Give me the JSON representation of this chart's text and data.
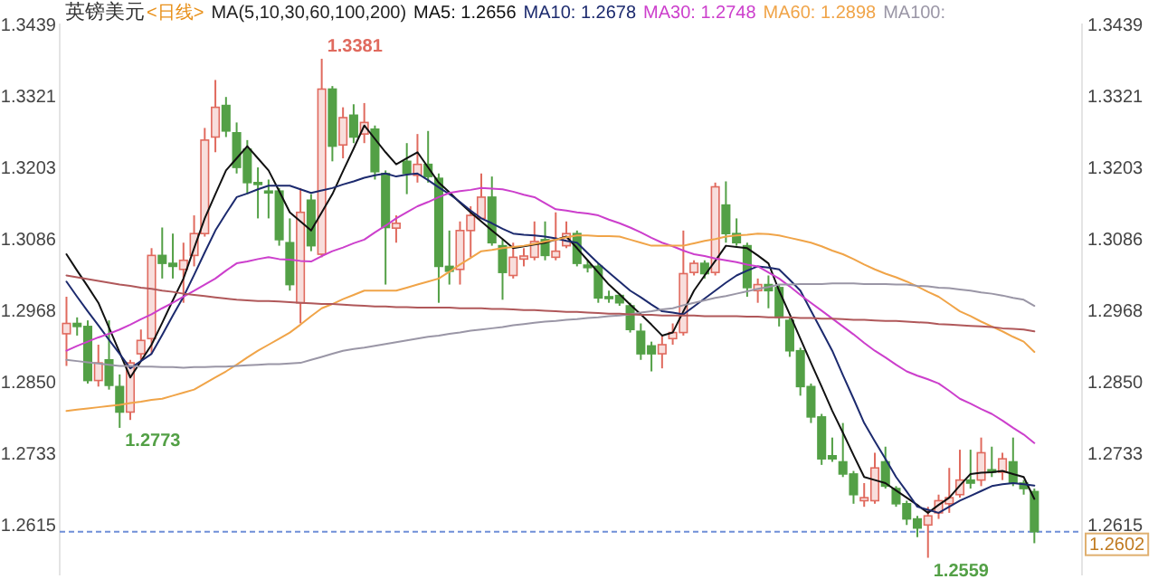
{
  "chart_data": {
    "type": "candlestick",
    "title": "英镑美元",
    "subtitle": "<日线>",
    "categories": [
      null,
      null,
      null,
      null,
      null,
      null,
      null,
      null,
      null,
      null,
      null,
      null,
      null,
      null,
      null,
      null,
      null,
      null,
      null,
      null,
      null,
      null,
      null,
      null,
      null,
      null,
      null,
      null,
      null,
      null,
      null,
      null,
      null,
      null,
      null,
      null,
      null,
      null,
      null,
      null,
      null,
      null,
      null,
      null,
      null,
      null,
      null,
      null,
      null,
      null,
      null,
      null,
      null,
      null,
      null,
      null,
      null,
      null,
      null,
      null,
      null,
      null,
      null,
      null,
      null,
      null,
      null,
      null,
      null,
      null,
      null,
      null,
      null,
      null,
      null,
      null,
      null,
      null,
      null,
      null,
      null,
      null,
      null,
      null,
      null,
      null,
      null,
      null,
      null,
      null,
      null,
      null
    ],
    "ohlc": [
      [
        1.2928,
        1.2989,
        1.2875,
        1.2945
      ],
      [
        1.2945,
        1.2955,
        1.2925,
        1.294
      ],
      [
        1.294,
        1.295,
        1.2846,
        1.2851
      ],
      [
        1.2851,
        1.291,
        1.2841,
        1.288
      ],
      [
        1.2885,
        1.295,
        1.2836,
        1.2843
      ],
      [
        1.2841,
        1.2861,
        1.2773,
        1.2799
      ],
      [
        1.2799,
        1.2885,
        1.2786,
        1.288
      ],
      [
        1.2895,
        1.2935,
        1.2885,
        1.2917
      ],
      [
        1.292,
        1.3069,
        1.2895,
        1.3057
      ],
      [
        1.3057,
        1.3103,
        1.3019,
        1.3044
      ],
      [
        1.3044,
        1.3093,
        1.3019,
        1.3039
      ],
      [
        1.3034,
        1.3078,
        1.2979,
        1.3049
      ],
      [
        1.3057,
        1.3123,
        1.3039,
        1.3093
      ],
      [
        1.3093,
        1.3267,
        1.3088,
        1.3247
      ],
      [
        1.3252,
        1.3346,
        1.3227,
        1.3301
      ],
      [
        1.3304,
        1.3318,
        1.3252,
        1.3262
      ],
      [
        1.3259,
        1.3276,
        1.3192,
        1.3202
      ],
      [
        1.3232,
        1.3247,
        1.3158,
        1.3177
      ],
      [
        1.3177,
        1.3202,
        1.3118,
        1.3174
      ],
      [
        1.3163,
        1.3182,
        1.3118,
        1.316
      ],
      [
        1.3163,
        1.3168,
        1.3073,
        1.3083
      ],
      [
        1.3078,
        1.3118,
        1.2999,
        1.3009
      ],
      [
        1.2979,
        1.3168,
        1.2945,
        1.3128
      ],
      [
        1.3148,
        1.3158,
        1.3064,
        1.3073
      ],
      [
        1.3059,
        1.3381,
        1.3054,
        1.3331
      ],
      [
        1.3331,
        1.3336,
        1.3212,
        1.3237
      ],
      [
        1.3239,
        1.3301,
        1.3217,
        1.3284
      ],
      [
        1.3288,
        1.3306,
        1.3242,
        1.3252
      ],
      [
        1.3257,
        1.3308,
        1.3242,
        1.3276
      ],
      [
        1.3265,
        1.3271,
        1.3182,
        1.3195
      ],
      [
        1.3192,
        1.3197,
        1.3009,
        1.3103
      ],
      [
        1.3102,
        1.3123,
        1.3078,
        1.311
      ],
      [
        1.3212,
        1.3242,
        1.3158,
        1.3192
      ],
      [
        1.3189,
        1.3257,
        1.3177,
        1.3207
      ],
      [
        1.3207,
        1.3262,
        1.3177,
        1.3187
      ],
      [
        1.3184,
        1.3192,
        1.2979,
        1.3039
      ],
      [
        1.3039,
        1.3098,
        1.3009,
        1.3031
      ],
      [
        1.3034,
        1.3113,
        1.3009,
        1.3098
      ],
      [
        1.3098,
        1.3138,
        1.3054,
        1.3123
      ],
      [
        1.3118,
        1.3192,
        1.3118,
        1.3153
      ],
      [
        1.3153,
        1.3187,
        1.3073,
        1.3078
      ],
      [
        1.3073,
        1.3083,
        1.2984,
        1.3029
      ],
      [
        1.3024,
        1.3078,
        1.3019,
        1.3054
      ],
      [
        1.3051,
        1.3069,
        1.3039,
        1.3056
      ],
      [
        1.3054,
        1.3113,
        1.3049,
        1.308
      ],
      [
        1.3083,
        1.3113,
        1.3049,
        1.3057
      ],
      [
        1.3054,
        1.3128,
        1.3049,
        1.3064
      ],
      [
        1.3073,
        1.3113,
        1.3069,
        1.3093
      ],
      [
        1.3093,
        1.3098,
        1.3039,
        1.3044
      ],
      [
        1.3041,
        1.3049,
        1.3029,
        1.3037
      ],
      [
        1.3039,
        1.3044,
        1.2979,
        1.2987
      ],
      [
        1.2989,
        1.2999,
        1.2979,
        1.2986
      ],
      [
        1.2991,
        1.2994,
        1.2974,
        1.2979
      ],
      [
        1.2974,
        1.2979,
        1.293,
        1.2935
      ],
      [
        1.2932,
        1.2945,
        1.2885,
        1.2895
      ],
      [
        1.2908,
        1.2915,
        1.2866,
        1.2895
      ],
      [
        1.2895,
        1.2925,
        1.2871,
        1.291
      ],
      [
        1.292,
        1.2945,
        1.291,
        1.293
      ],
      [
        1.293,
        1.3098,
        1.2925,
        1.3027
      ],
      [
        1.3029,
        1.3049,
        1.3024,
        1.3044
      ],
      [
        1.3044,
        1.3049,
        1.3019,
        1.3027
      ],
      [
        1.3029,
        1.3177,
        1.3024,
        1.317
      ],
      [
        1.314,
        1.3179,
        1.3078,
        1.3093
      ],
      [
        1.3093,
        1.3118,
        1.3073,
        1.3078
      ],
      [
        1.3073,
        1.3078,
        1.2989,
        1.3004
      ],
      [
        1.2999,
        1.3019,
        1.2979,
        1.3009
      ],
      [
        1.3009,
        1.3024,
        1.297,
        1.2999
      ],
      [
        1.3004,
        1.3009,
        1.294,
        1.2955
      ],
      [
        1.295,
        1.2955,
        1.289,
        1.29
      ],
      [
        1.29,
        1.2905,
        1.2826,
        1.2841
      ],
      [
        1.2841,
        1.2846,
        1.2781,
        1.2791
      ],
      [
        1.2791,
        1.2796,
        1.2712,
        1.2722
      ],
      [
        1.2727,
        1.2757,
        1.2717,
        1.2722
      ],
      [
        1.2717,
        1.2781,
        1.2692,
        1.2697
      ],
      [
        1.2697,
        1.2702,
        1.2648,
        1.2663
      ],
      [
        1.2653,
        1.2682,
        1.2643,
        1.2658
      ],
      [
        1.2653,
        1.2732,
        1.2648,
        1.2707
      ],
      [
        1.2717,
        1.2742,
        1.2673,
        1.2677
      ],
      [
        1.2673,
        1.2677,
        1.2643,
        1.2648
      ],
      [
        1.2648,
        1.2653,
        1.2613,
        1.2623
      ],
      [
        1.2623,
        1.2628,
        1.2593,
        1.2608
      ],
      [
        1.2613,
        1.2643,
        1.2559,
        1.2628
      ],
      [
        1.2633,
        1.2663,
        1.2623,
        1.2653
      ],
      [
        1.2648,
        1.2707,
        1.2633,
        1.2658
      ],
      [
        1.2663,
        1.2737,
        1.2658,
        1.2687
      ],
      [
        1.2687,
        1.2737,
        1.2673,
        1.2682
      ],
      [
        1.2687,
        1.2757,
        1.2677,
        1.2732
      ],
      [
        1.2704,
        1.2742,
        1.2692,
        1.27
      ],
      [
        1.27,
        1.2732,
        1.2687,
        1.2722
      ],
      [
        1.2717,
        1.2757,
        1.2677,
        1.2682
      ],
      [
        1.2682,
        1.2687,
        1.2663,
        1.2673
      ],
      [
        1.2668,
        1.2673,
        1.2583,
        1.2602
      ]
    ],
    "colors": [
      "#e06a5e",
      "#53a046",
      "#53a046",
      "#e06a5e",
      "#53a046",
      "#53a046",
      "#e06a5e",
      "#e06a5e",
      "#e06a5e",
      "#53a046",
      "#53a046",
      "#e06a5e",
      "#e06a5e",
      "#e06a5e",
      "#e06a5e",
      "#53a046",
      "#53a046",
      "#53a046",
      "#53a046",
      "#53a046",
      "#53a046",
      "#53a046",
      "#e06a5e",
      "#53a046",
      "#e06a5e",
      "#53a046",
      "#e06a5e",
      "#53a046",
      "#e06a5e",
      "#53a046",
      "#53a046",
      "#e06a5e",
      "#53a046",
      "#e06a5e",
      "#53a046",
      "#53a046",
      "#53a046",
      "#e06a5e",
      "#e06a5e",
      "#e06a5e",
      "#53a046",
      "#53a046",
      "#e06a5e",
      "#e06a5e",
      "#e06a5e",
      "#53a046",
      "#e06a5e",
      "#e06a5e",
      "#53a046",
      "#53a046",
      "#53a046",
      "#53a046",
      "#53a046",
      "#53a046",
      "#53a046",
      "#53a046",
      "#e06a5e",
      "#e06a5e",
      "#e06a5e",
      "#e06a5e",
      "#53a046",
      "#e06a5e",
      "#53a046",
      "#53a046",
      "#53a046",
      "#e06a5e",
      "#53a046",
      "#53a046",
      "#53a046",
      "#53a046",
      "#53a046",
      "#53a046",
      "#53a046",
      "#53a046",
      "#53a046",
      "#e06a5e",
      "#e06a5e",
      "#53a046",
      "#53a046",
      "#53a046",
      "#53a046",
      "#e06a5e",
      "#e06a5e",
      "#e06a5e",
      "#e06a5e",
      "#53a046",
      "#e06a5e",
      "#53a046",
      "#e06a5e",
      "#53a046",
      "#53a046",
      "#53a046"
    ],
    "series": [
      {
        "type": "line",
        "name": "MA5: 1.2656",
        "color": "#111111",
        "values": [
          1.3059,
          1.3032,
          1.3006,
          1.2979,
          1.2938,
          1.2897,
          1.2856,
          1.2883,
          1.291,
          1.2946,
          1.2983,
          1.3019,
          1.3069,
          1.3118,
          1.3158,
          1.3197,
          1.3217,
          1.3237,
          1.3217,
          1.3197,
          1.3163,
          1.3128,
          1.3113,
          1.3098,
          1.3128,
          1.3158,
          1.3196,
          1.3233,
          1.3271,
          1.3249,
          1.3227,
          1.3207,
          1.3217,
          1.3227,
          1.3202,
          1.3177,
          1.3161,
          1.3144,
          1.3128,
          1.3113,
          1.3098,
          1.3084,
          1.3069,
          1.3072,
          1.3075,
          1.3078,
          1.3083,
          1.3088,
          1.3069,
          1.3049,
          1.3029,
          1.3009,
          1.2993,
          1.2976,
          1.296,
          1.2943,
          1.2925,
          1.293,
          1.2965,
          1.2999,
          1.3024,
          1.3048,
          1.3073,
          1.3071,
          1.3069,
          1.3057,
          1.3044,
          1.2999,
          1.296,
          1.292,
          1.288,
          1.2841,
          1.2801,
          1.2765,
          1.2728,
          1.2692,
          1.2687,
          1.2682,
          1.267,
          1.2658,
          1.2646,
          1.2633,
          1.2646,
          1.2658,
          1.2678,
          1.2697,
          1.2699,
          1.27,
          1.2702,
          1.2697,
          1.2692,
          1.2656
        ]
      },
      {
        "type": "line",
        "name": "MA10: 1.2678",
        "color": "#1c2a6e",
        "values": [
          1.3014,
          1.2989,
          1.2965,
          1.2942,
          1.2918,
          1.2895,
          1.2871,
          1.2883,
          1.2895,
          1.2926,
          1.2958,
          1.2989,
          1.3025,
          1.3062,
          1.3098,
          1.3126,
          1.3153,
          1.3159,
          1.3166,
          1.3172,
          1.3172,
          1.3172,
          1.3166,
          1.316,
          1.3164,
          1.3168,
          1.3174,
          1.3179,
          1.3185,
          1.3189,
          1.3192,
          1.3187,
          1.319,
          1.3192,
          1.3181,
          1.3169,
          1.3158,
          1.3145,
          1.3131,
          1.3118,
          1.311,
          1.3101,
          1.3093,
          1.3091,
          1.309,
          1.3088,
          1.3085,
          1.3081,
          1.3078,
          1.3061,
          1.3044,
          1.3029,
          1.3014,
          1.2999,
          1.2988,
          1.2976,
          1.2965,
          1.2963,
          1.296,
          1.2973,
          1.2986,
          1.2999,
          1.3012,
          1.3024,
          1.3032,
          1.3039,
          1.3037,
          1.3034,
          1.3017,
          1.2999,
          1.2966,
          1.2933,
          1.29,
          1.286,
          1.2821,
          1.2781,
          1.2751,
          1.2722,
          1.2692,
          1.2668,
          1.2643,
          1.2638,
          1.2633,
          1.2643,
          1.2653,
          1.2661,
          1.2669,
          1.2677,
          1.268,
          1.2682,
          1.268,
          1.2678
        ]
      },
      {
        "type": "line",
        "name": "MA30: 1.2748",
        "color": "#cc3fcc",
        "values": [
          1.29,
          1.2908,
          1.2915,
          1.2922,
          1.2928,
          1.2935,
          1.2943,
          1.2952,
          1.296,
          1.297,
          1.2979,
          1.2989,
          1.2999,
          1.3009,
          1.3019,
          1.3032,
          1.3044,
          1.3047,
          1.3051,
          1.3054,
          1.3051,
          1.305,
          1.3048,
          1.3047,
          1.3056,
          1.3064,
          1.307,
          1.3077,
          1.3083,
          1.3095,
          1.3106,
          1.3118,
          1.3128,
          1.3138,
          1.3145,
          1.3153,
          1.316,
          1.3163,
          1.3165,
          1.3168,
          1.3167,
          1.3166,
          1.3162,
          1.3157,
          1.3153,
          1.3143,
          1.3133,
          1.3131,
          1.3128,
          1.3126,
          1.3123,
          1.3116,
          1.311,
          1.3103,
          1.3095,
          1.3086,
          1.3078,
          1.3072,
          1.3065,
          1.3059,
          1.3056,
          1.3052,
          1.3049,
          1.3046,
          1.3042,
          1.3039,
          1.3029,
          1.3019,
          1.3006,
          1.2992,
          1.2979,
          1.2966,
          1.2953,
          1.294,
          1.2927,
          1.2913,
          1.29,
          1.2889,
          1.2877,
          1.2866,
          1.2859,
          1.2853,
          1.2846,
          1.2834,
          1.2821,
          1.2813,
          1.2804,
          1.2796,
          1.2785,
          1.2773,
          1.2762,
          1.2748
        ]
      },
      {
        "type": "line",
        "name": "MA60: 1.2898",
        "color": "#f0a448",
        "values": [
          1.2801,
          1.2803,
          1.2805,
          1.2807,
          1.2809,
          1.2811,
          1.2814,
          1.2816,
          1.2819,
          1.2821,
          1.2826,
          1.2831,
          1.2836,
          1.2846,
          1.2856,
          1.2866,
          1.2877,
          1.2889,
          1.29,
          1.291,
          1.292,
          1.293,
          1.2943,
          1.2957,
          1.297,
          1.2977,
          1.2985,
          1.2992,
          1.2999,
          1.2999,
          1.2999,
          1.2999,
          1.3004,
          1.3009,
          1.3014,
          1.3019,
          1.303,
          1.3042,
          1.3053,
          1.3064,
          1.3066,
          1.3069,
          1.3071,
          1.3073,
          1.3076,
          1.308,
          1.3083,
          1.3087,
          1.309,
          1.309,
          1.3089,
          1.3089,
          1.3088,
          1.3083,
          1.3078,
          1.3073,
          1.3073,
          1.3073,
          1.3073,
          1.3077,
          1.3081,
          1.3084,
          1.3088,
          1.309,
          1.3091,
          1.3093,
          1.3092,
          1.309,
          1.3086,
          1.3082,
          1.3078,
          1.3072,
          1.3065,
          1.3059,
          1.3051,
          1.3042,
          1.3034,
          1.3027,
          1.3021,
          1.3014,
          1.3006,
          1.2997,
          1.2989,
          1.2977,
          1.2965,
          1.2957,
          1.2948,
          1.294,
          1.2932,
          1.2923,
          1.2915,
          1.2898
        ]
      },
      {
        "type": "line",
        "name": "MA100:",
        "color": "#9a96a6",
        "values": [
          1.2885,
          1.2883,
          1.2881,
          1.2879,
          1.2877,
          1.2875,
          1.2875,
          1.2874,
          1.2874,
          1.2873,
          1.2873,
          1.2872,
          1.2873,
          1.2873,
          1.2874,
          1.2874,
          1.2875,
          1.2876,
          1.2877,
          1.2878,
          1.2878,
          1.2879,
          1.288,
          1.2885,
          1.289,
          1.2895,
          1.29,
          1.2903,
          1.2905,
          1.2908,
          1.2911,
          1.2914,
          1.2917,
          1.292,
          1.2923,
          1.2925,
          1.2928,
          1.293,
          1.2933,
          1.2935,
          1.2937,
          1.2939,
          1.2942,
          1.2944,
          1.2946,
          1.2948,
          1.2949,
          1.2951,
          1.2952,
          1.2954,
          1.2955,
          1.2957,
          1.2958,
          1.296,
          1.2963,
          1.2965,
          1.2968,
          1.297,
          1.2975,
          1.2979,
          1.2983,
          1.2987,
          1.299,
          1.2994,
          1.2998,
          1.3002,
          1.3005,
          1.3009,
          1.3009,
          1.301,
          1.301,
          1.301,
          1.3011,
          1.3011,
          1.3011,
          1.301,
          1.301,
          1.301,
          1.3009,
          1.3009,
          1.3007,
          1.3006,
          1.3004,
          1.3003,
          1.3001,
          1.2999,
          1.2996,
          1.2994,
          1.2991,
          1.2987,
          1.2984,
          1.2974
        ]
      },
      {
        "type": "line",
        "color": "#b0585a",
        "values": [
          1.3024,
          1.3021,
          1.3018,
          1.3015,
          1.3012,
          1.3009,
          1.3007,
          1.3004,
          1.3002,
          1.2999,
          1.2997,
          1.2994,
          1.2992,
          1.299,
          1.2988,
          1.2986,
          1.2984,
          1.2983,
          1.2982,
          1.2982,
          1.2981,
          1.298,
          1.2979,
          1.2978,
          1.2977,
          1.2977,
          1.2976,
          1.2975,
          1.2974,
          1.2973,
          1.2973,
          1.2972,
          1.2972,
          1.2971,
          1.2971,
          1.2971,
          1.2971,
          1.297,
          1.297,
          1.297,
          1.2969,
          1.2969,
          1.2968,
          1.2967,
          1.2967,
          1.2966,
          1.2965,
          1.2964,
          1.2964,
          1.2963,
          1.2962,
          1.2961,
          1.2961,
          1.296,
          1.2959,
          1.2959,
          1.2958,
          1.2958,
          1.2958,
          1.2958,
          1.2957,
          1.2957,
          1.2957,
          1.2957,
          1.2956,
          1.2956,
          1.2955,
          1.2955,
          1.2955,
          1.2954,
          1.2954,
          1.2953,
          1.2953,
          1.2952,
          1.2951,
          1.2951,
          1.295,
          1.2949,
          1.2949,
          1.2948,
          1.2947,
          1.2946,
          1.2944,
          1.2943,
          1.2942,
          1.2941,
          1.294,
          1.2939,
          1.2937,
          1.2936,
          1.2935,
          1.2932
        ]
      }
    ],
    "ylim": [
      1.253,
      1.3439
    ],
    "yticks": [
      1.2615,
      1.2733,
      {
        "value": 1.285,
        "label": "1.2850"
      },
      1.2968,
      1.3086,
      1.3203,
      1.3321,
      1.3439
    ],
    "y2lim": [
      1.253,
      1.3439
    ],
    "y2ticks": [
      1.2615,
      1.2733,
      {
        "value": 1.285,
        "label": "1.2850"
      },
      1.2968,
      1.3086,
      1.3203,
      1.3321,
      1.3439
    ],
    "tick_labels": "y",
    "ref_lines": [
      {
        "axis": "y",
        "value": 1.2602,
        "label": "1.2602",
        "color": "#6f8fd8",
        "line_style": "dashed"
      }
    ],
    "annotations": [
      "MA(5,10,30,60,100,200)",
      "1.3381",
      "1.2773",
      "1.2559"
    ]
  }
}
